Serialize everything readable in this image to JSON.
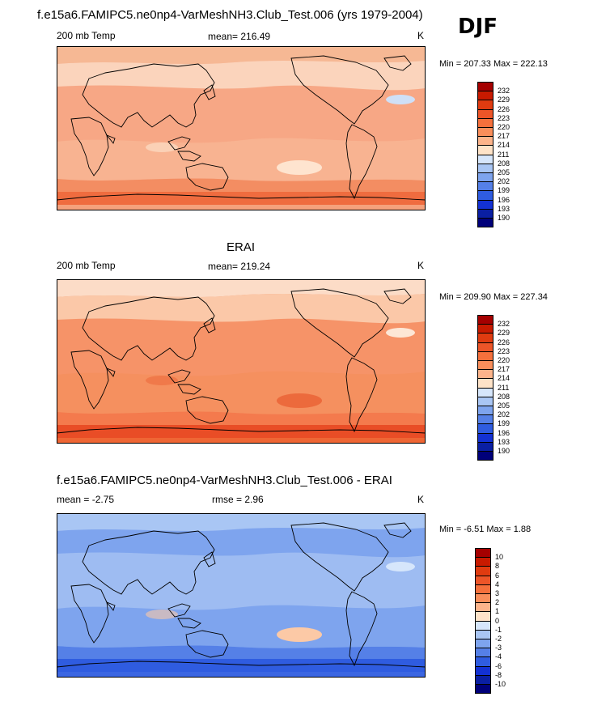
{
  "header": {
    "title": "f.e15a6.FAMIPC5.ne0np4-VarMeshNH3.Club_Test.006 (yrs 1979-2004)",
    "season": "DJF"
  },
  "panels": [
    {
      "id": "model",
      "section_title": "",
      "left_label": "200 mb Temp",
      "center_label": "mean= 216.49",
      "right_label": "K",
      "minmax": "Min = 207.33 Max = 222.13",
      "legend": {
        "labels": [
          "232",
          "229",
          "226",
          "223",
          "220",
          "217",
          "214",
          "211",
          "208",
          "205",
          "202",
          "199",
          "196",
          "193",
          "190"
        ],
        "colors": [
          "#a50000",
          "#c81a00",
          "#e03b10",
          "#ed5528",
          "#f5703c",
          "#f98e5b",
          "#fcb48b",
          "#fee3c8",
          "#d6e6fb",
          "#a9c6f4",
          "#7ea4ee",
          "#5580e7",
          "#2f5ce0",
          "#1331d3",
          "#0a1fa3",
          "#00007a"
        ]
      },
      "field": {
        "north_polar": "#f6b894",
        "high_lat": "#fbd4bc",
        "mid": "#f7a785",
        "tropics": "#f8b391",
        "south_mid": "#f38d62",
        "south_band": "#ef6c3f",
        "south_polar": "#f5a17c",
        "cool_spot": "#cfe0f7",
        "warm_spot": "#fee4cf"
      }
    },
    {
      "id": "obs",
      "section_title": "ERAI",
      "left_label": "200 mb Temp",
      "center_label": "mean= 219.24",
      "right_label": "K",
      "minmax": "Min = 209.90 Max = 227.34",
      "legend": {
        "labels": [
          "232",
          "229",
          "226",
          "223",
          "220",
          "217",
          "214",
          "211",
          "208",
          "205",
          "202",
          "199",
          "196",
          "193",
          "190"
        ],
        "colors": [
          "#a50000",
          "#c81a00",
          "#e03b10",
          "#ed5528",
          "#f5703c",
          "#f98e5b",
          "#fcb48b",
          "#fee3c8",
          "#d6e6fb",
          "#a9c6f4",
          "#7ea4ee",
          "#5580e7",
          "#2f5ce0",
          "#1331d3",
          "#0a1fa3",
          "#00007a"
        ]
      },
      "field": {
        "north_polar": "#fcdcc7",
        "high_lat": "#fbc8a8",
        "mid": "#f69368",
        "tropics": "#f5905f",
        "south_mid": "#f47a4d",
        "south_band": "#e94d26",
        "south_polar": "#ef6634",
        "cool_spot": "#fde7d6",
        "warm_spot": "#ec6a3c"
      }
    },
    {
      "id": "diff",
      "section_title": "f.e15a6.FAMIPC5.ne0np4-VarMeshNH3.Club_Test.006 - ERAI",
      "left_label": "mean =  -2.75",
      "center_label": "rmse =   2.96",
      "right_label": "K",
      "minmax": "Min =  -6.51 Max =   1.88",
      "legend": {
        "labels": [
          "10",
          "8",
          "6",
          "4",
          "3",
          "2",
          "1",
          "0",
          "-1",
          "-2",
          "-3",
          "-4",
          "-6",
          "-8",
          "-10"
        ],
        "colors": [
          "#a50000",
          "#c81a00",
          "#e03b10",
          "#ed5528",
          "#f5703c",
          "#f98e5b",
          "#fcb48b",
          "#fee3c8",
          "#d6e6fb",
          "#a9c6f4",
          "#7ea4ee",
          "#5580e7",
          "#2f5ce0",
          "#1331d3",
          "#0a1fa3",
          "#00007a"
        ]
      },
      "field": {
        "north_polar": "#a9c6f4",
        "high_lat": "#7ea4ee",
        "mid": "#9ebcf2",
        "tropics": "#7ea4ee",
        "south_mid": "#5580e7",
        "south_band": "#2f5ce0",
        "south_polar": "#3b66e2",
        "cool_spot": "#d6e6fb",
        "warm_spot": "#fcc9a6"
      }
    }
  ]
}
